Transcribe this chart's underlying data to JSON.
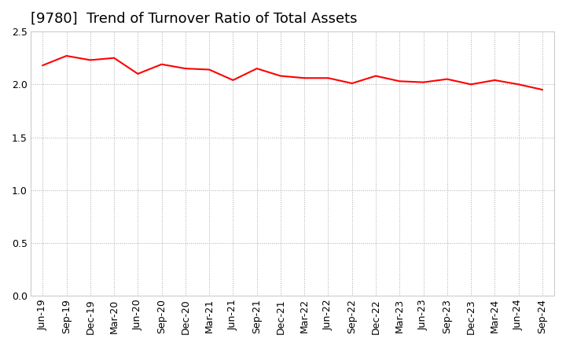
{
  "title": "[9780]  Trend of Turnover Ratio of Total Assets",
  "x_labels": [
    "Jun-19",
    "Sep-19",
    "Dec-19",
    "Mar-20",
    "Jun-20",
    "Sep-20",
    "Dec-20",
    "Mar-21",
    "Jun-21",
    "Sep-21",
    "Dec-21",
    "Mar-22",
    "Jun-22",
    "Sep-22",
    "Dec-22",
    "Mar-23",
    "Jun-23",
    "Sep-23",
    "Dec-23",
    "Mar-24",
    "Jun-24",
    "Sep-24"
  ],
  "y_values": [
    2.18,
    2.27,
    2.23,
    2.25,
    2.1,
    2.19,
    2.15,
    2.14,
    2.04,
    2.15,
    2.08,
    2.06,
    2.06,
    2.01,
    2.08,
    2.03,
    2.02,
    2.05,
    2.0,
    2.04,
    2.0,
    1.95
  ],
  "line_color": "#FF0000",
  "line_width": 1.5,
  "ylim": [
    0.0,
    2.5
  ],
  "yticks": [
    0.0,
    0.5,
    1.0,
    1.5,
    2.0,
    2.5
  ],
  "background_color": "#FFFFFF",
  "grid_color": "#AAAAAA",
  "title_fontsize": 13,
  "axis_fontsize": 9
}
